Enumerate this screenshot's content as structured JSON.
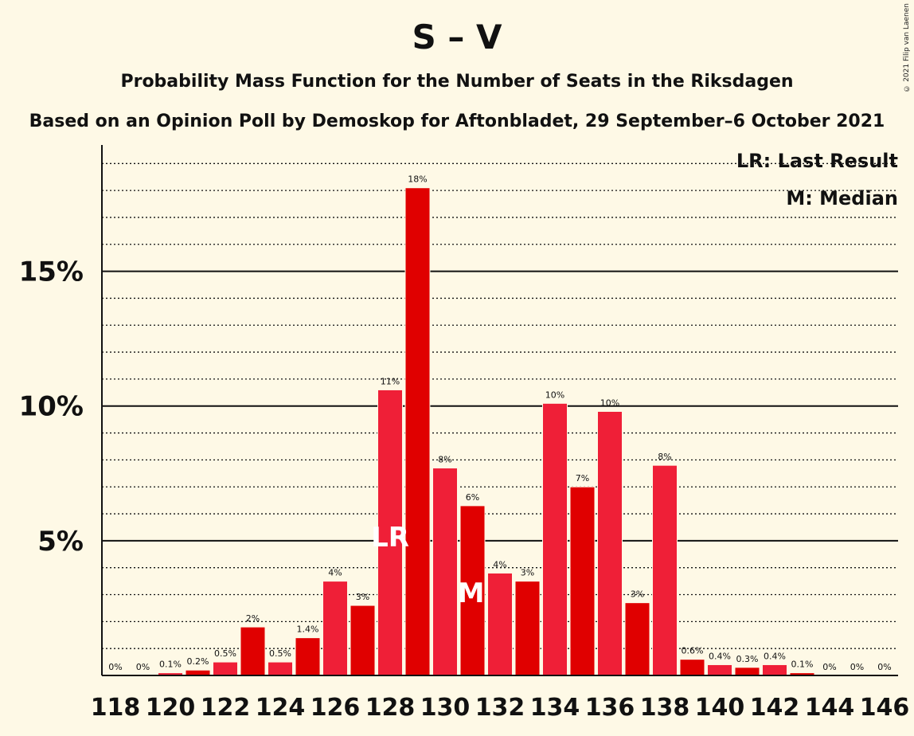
{
  "title": "S – V",
  "subtitle": "Probability Mass Function for the Number of Seats in the Riksdagen",
  "subtitle2": "Based on an Opinion Poll by Demoskop for Aftonbladet, 29 September–6 October 2021",
  "copyright": "© 2021 Filip van Laenen",
  "legend": {
    "lr": "LR: Last Result",
    "median": "M: Median"
  },
  "colors": {
    "bar_dark": "#e00000",
    "bar_light": "#ef1f37",
    "background": "#fef9e6"
  },
  "chart_data": {
    "type": "bar",
    "x": [
      118,
      119,
      120,
      121,
      122,
      123,
      124,
      125,
      126,
      127,
      128,
      129,
      130,
      131,
      132,
      133,
      134,
      135,
      136,
      137,
      138,
      139,
      140,
      141,
      142,
      143,
      144,
      145,
      146
    ],
    "values": [
      0,
      0,
      0.1,
      0.2,
      0.5,
      1.8,
      0.5,
      1.4,
      3.5,
      2.6,
      10.6,
      18.1,
      7.7,
      6.3,
      3.8,
      3.5,
      10.1,
      7.0,
      9.8,
      2.7,
      7.8,
      0.6,
      0.4,
      0.3,
      0.4,
      0.1,
      0,
      0,
      0
    ],
    "labels": [
      "0%",
      "0%",
      "0.1%",
      "0.2%",
      "0.5%",
      "2%",
      "0.5%",
      "1.4%",
      "4%",
      "3%",
      "11%",
      "18%",
      "8%",
      "6%",
      "4%",
      "3%",
      "10%",
      "7%",
      "10%",
      "3%",
      "8%",
      "0.6%",
      "0.4%",
      "0.3%",
      "0.4%",
      "0.1%",
      "0%",
      "0%",
      "0%"
    ],
    "x_tick_labels": [
      "118",
      "120",
      "122",
      "124",
      "126",
      "128",
      "130",
      "132",
      "134",
      "136",
      "138",
      "140",
      "142",
      "144",
      "146"
    ],
    "y_tick_labels": [
      "5%",
      "10%",
      "15%"
    ],
    "y_ticks": [
      5,
      10,
      15
    ],
    "ylim": [
      0,
      19.6
    ],
    "last_result_seat": 128,
    "median_seat": 131,
    "last_result_mark": "LR",
    "median_mark": "M"
  }
}
